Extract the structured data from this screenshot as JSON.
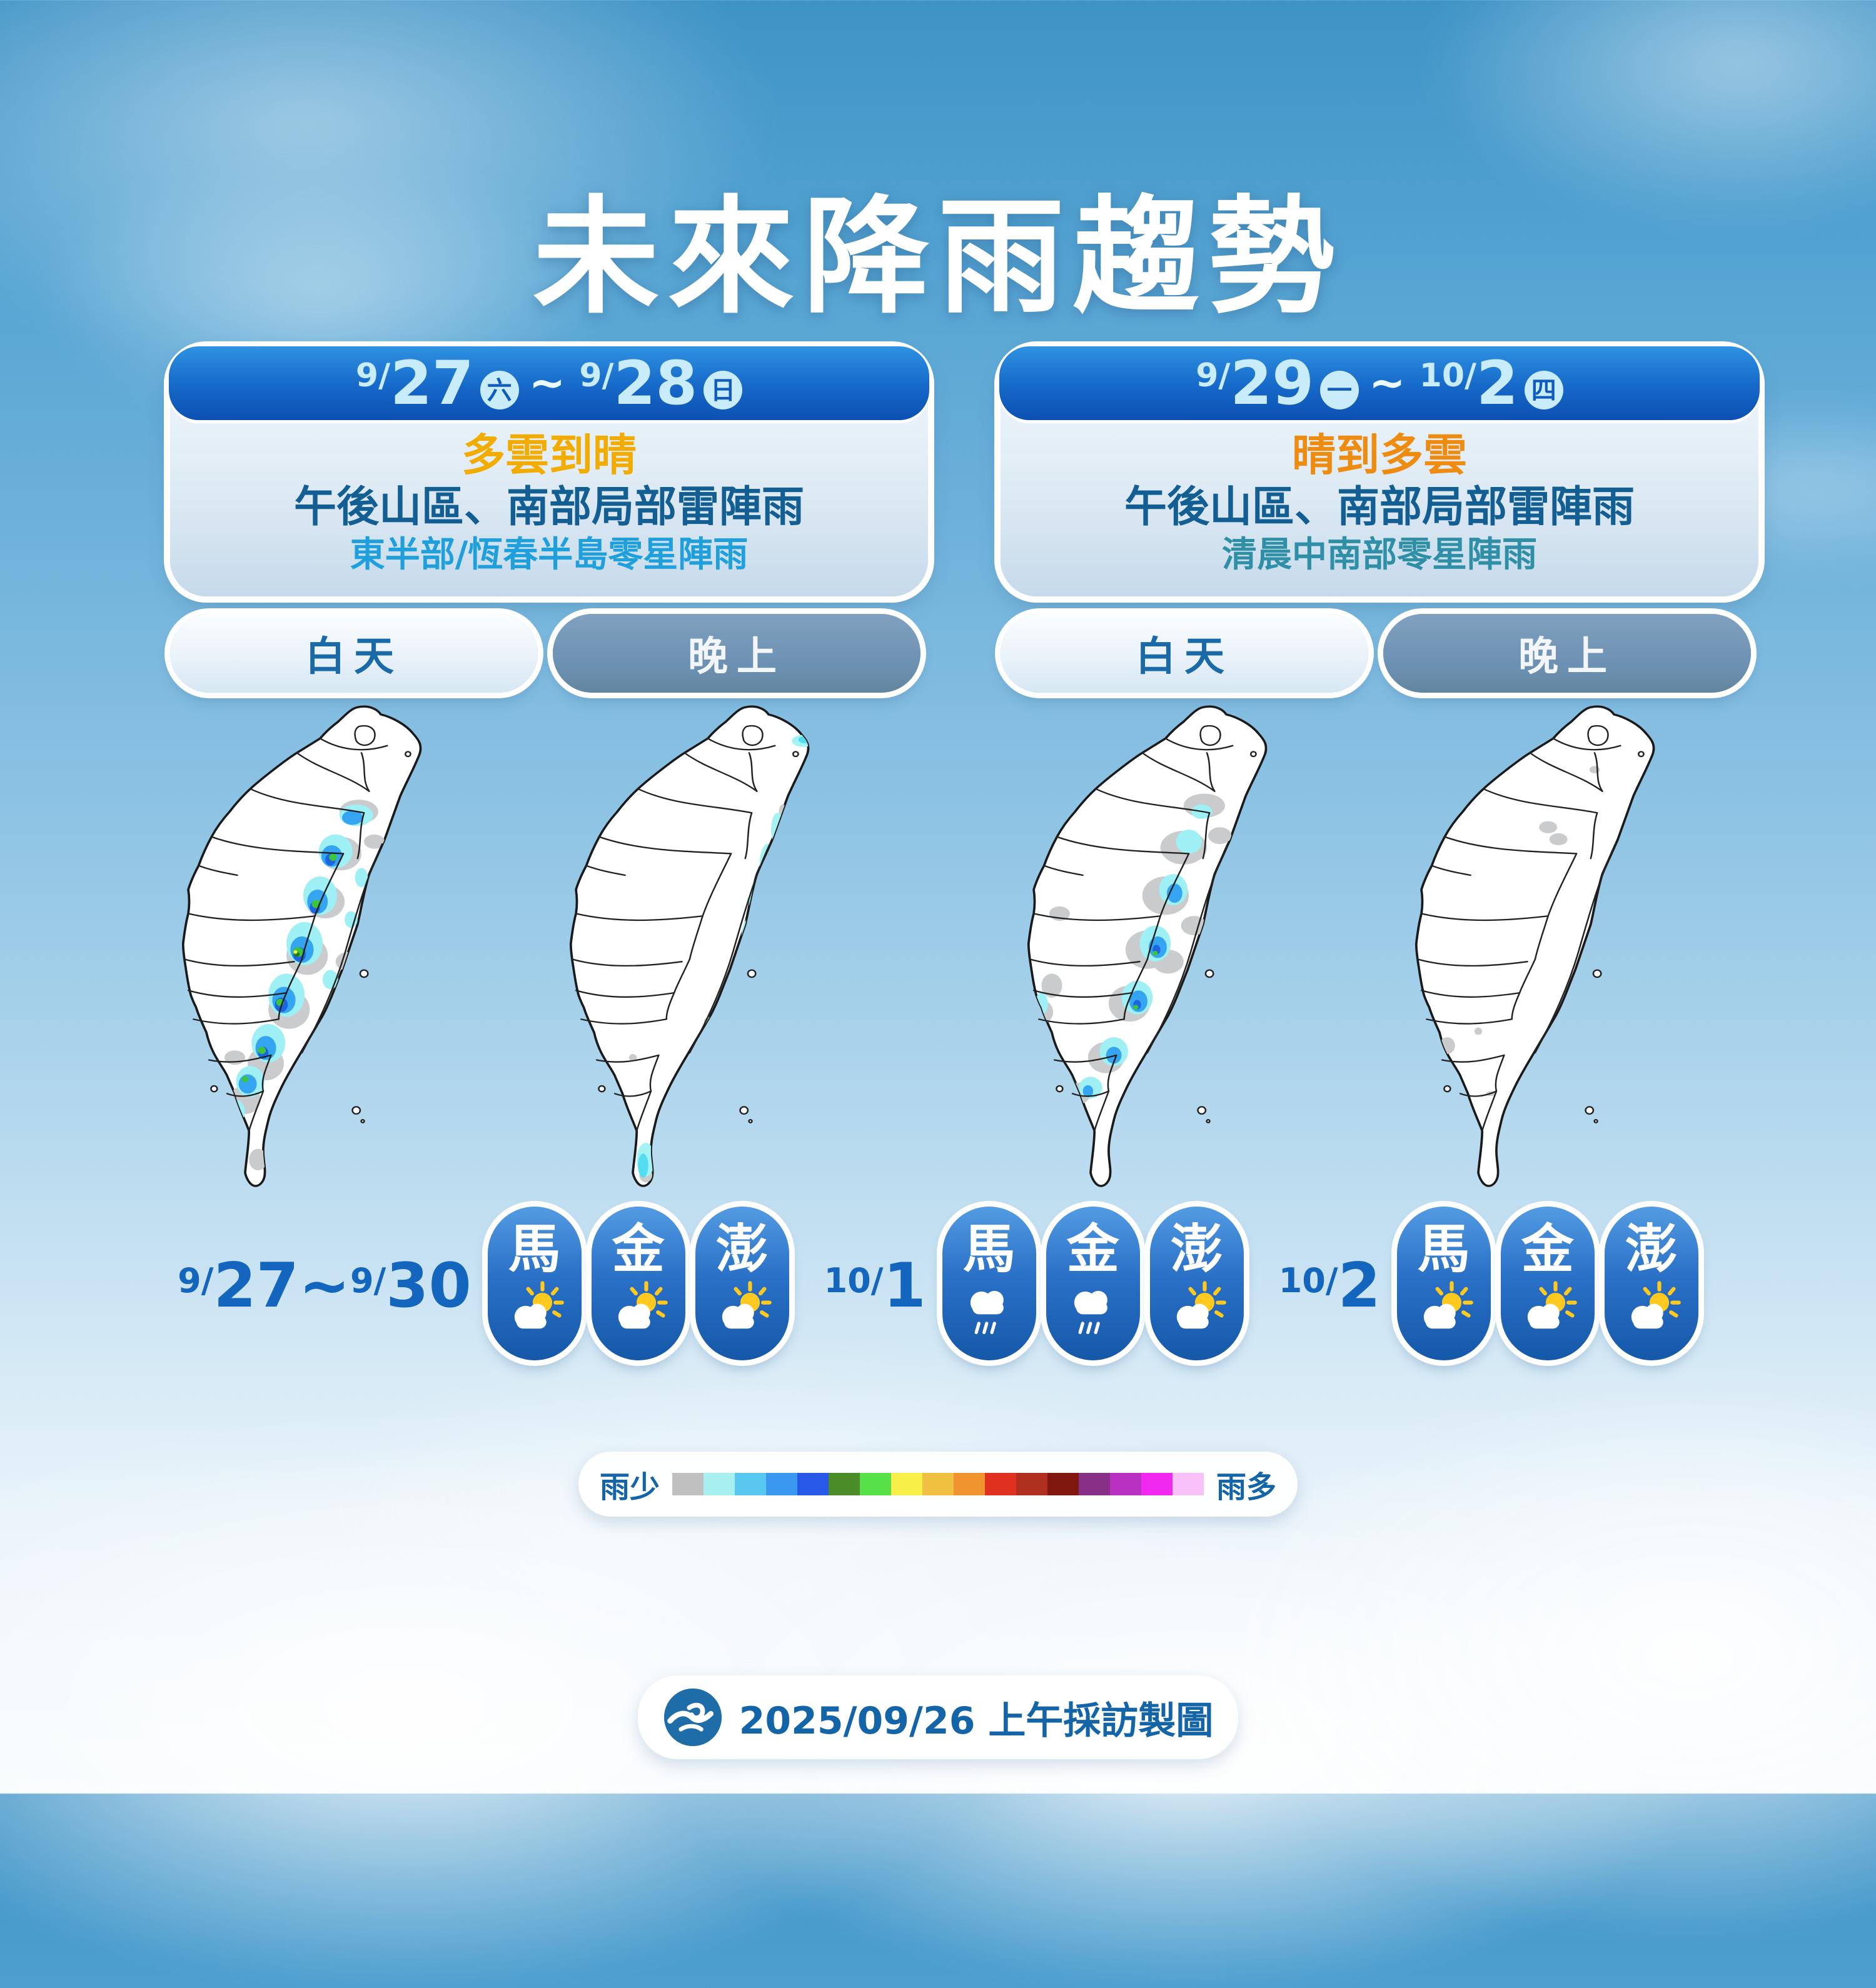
{
  "title": "未來降雨趨勢",
  "panels": [
    {
      "header_parts": [
        {
          "t": "sup",
          "v": "9/"
        },
        {
          "t": "num",
          "v": "27"
        },
        {
          "t": "wk",
          "v": "六"
        },
        {
          "t": "tilde",
          "v": "~"
        },
        {
          "t": "sup",
          "v": "9/"
        },
        {
          "t": "num",
          "v": "28"
        },
        {
          "t": "wk",
          "v": "日"
        }
      ],
      "summary": "多雲到晴",
      "detail": "午後山區、南部局部雷陣雨",
      "note": "東半部/恆春半島零星陣雨",
      "day_tab": "白天",
      "night_tab": "晚上"
    },
    {
      "header_parts": [
        {
          "t": "sup",
          "v": "9/"
        },
        {
          "t": "num",
          "v": "29"
        },
        {
          "t": "wk",
          "v": "一"
        },
        {
          "t": "tilde",
          "v": "~"
        },
        {
          "t": "sup",
          "v": "10/"
        },
        {
          "t": "num",
          "v": "2"
        },
        {
          "t": "wk",
          "v": "四"
        }
      ],
      "summary": "晴到多雲",
      "detail": "午後山區、南部局部雷陣雨",
      "note": "清晨中南部零星陣雨",
      "day_tab": "白天",
      "night_tab": "晚上"
    }
  ],
  "island_groups": [
    {
      "date_parts": [
        {
          "t": "sup",
          "v": "9/"
        },
        {
          "t": "num",
          "v": "27~"
        },
        {
          "t": "sup",
          "v": "9/"
        },
        {
          "t": "num",
          "v": "30"
        }
      ],
      "islands": [
        {
          "name": "馬",
          "icon": "partly-cloudy"
        },
        {
          "name": "金",
          "icon": "partly-cloudy"
        },
        {
          "name": "澎",
          "icon": "partly-cloudy"
        }
      ]
    },
    {
      "date_parts": [
        {
          "t": "sup",
          "v": "10/"
        },
        {
          "t": "num",
          "v": "1"
        }
      ],
      "islands": [
        {
          "name": "馬",
          "icon": "rain"
        },
        {
          "name": "金",
          "icon": "rain"
        },
        {
          "name": "澎",
          "icon": "partly-cloudy"
        }
      ]
    },
    {
      "date_parts": [
        {
          "t": "sup",
          "v": "10/"
        },
        {
          "t": "num",
          "v": "2"
        }
      ],
      "islands": [
        {
          "name": "馬",
          "icon": "partly-cloudy"
        },
        {
          "name": "金",
          "icon": "partly-cloudy"
        },
        {
          "name": "澎",
          "icon": "partly-cloudy"
        }
      ]
    }
  ],
  "legend": {
    "less_label": "雨少",
    "more_label": "雨多",
    "colors": [
      "#C0C0C0",
      "#A8F0F0",
      "#58C8F0",
      "#3A98F0",
      "#2858E8",
      "#4C8C28",
      "#58E048",
      "#F8F048",
      "#F0C040",
      "#F09430",
      "#E03020",
      "#B03020",
      "#801810",
      "#883088",
      "#B830C0",
      "#F028F0",
      "#F8C0F8"
    ]
  },
  "footer": {
    "date_note": "2025/09/26 上午採訪製圖",
    "logo": "cwa-logo"
  },
  "colors": {
    "orange1": "#F2AC00",
    "orange2": "#EE8C12",
    "detail-blue": "#135E93",
    "note1": "#1FA0DC",
    "note2": "#2E8FA6",
    "date-blue": "#1465BD",
    "legend-blue": "#1465A8"
  }
}
